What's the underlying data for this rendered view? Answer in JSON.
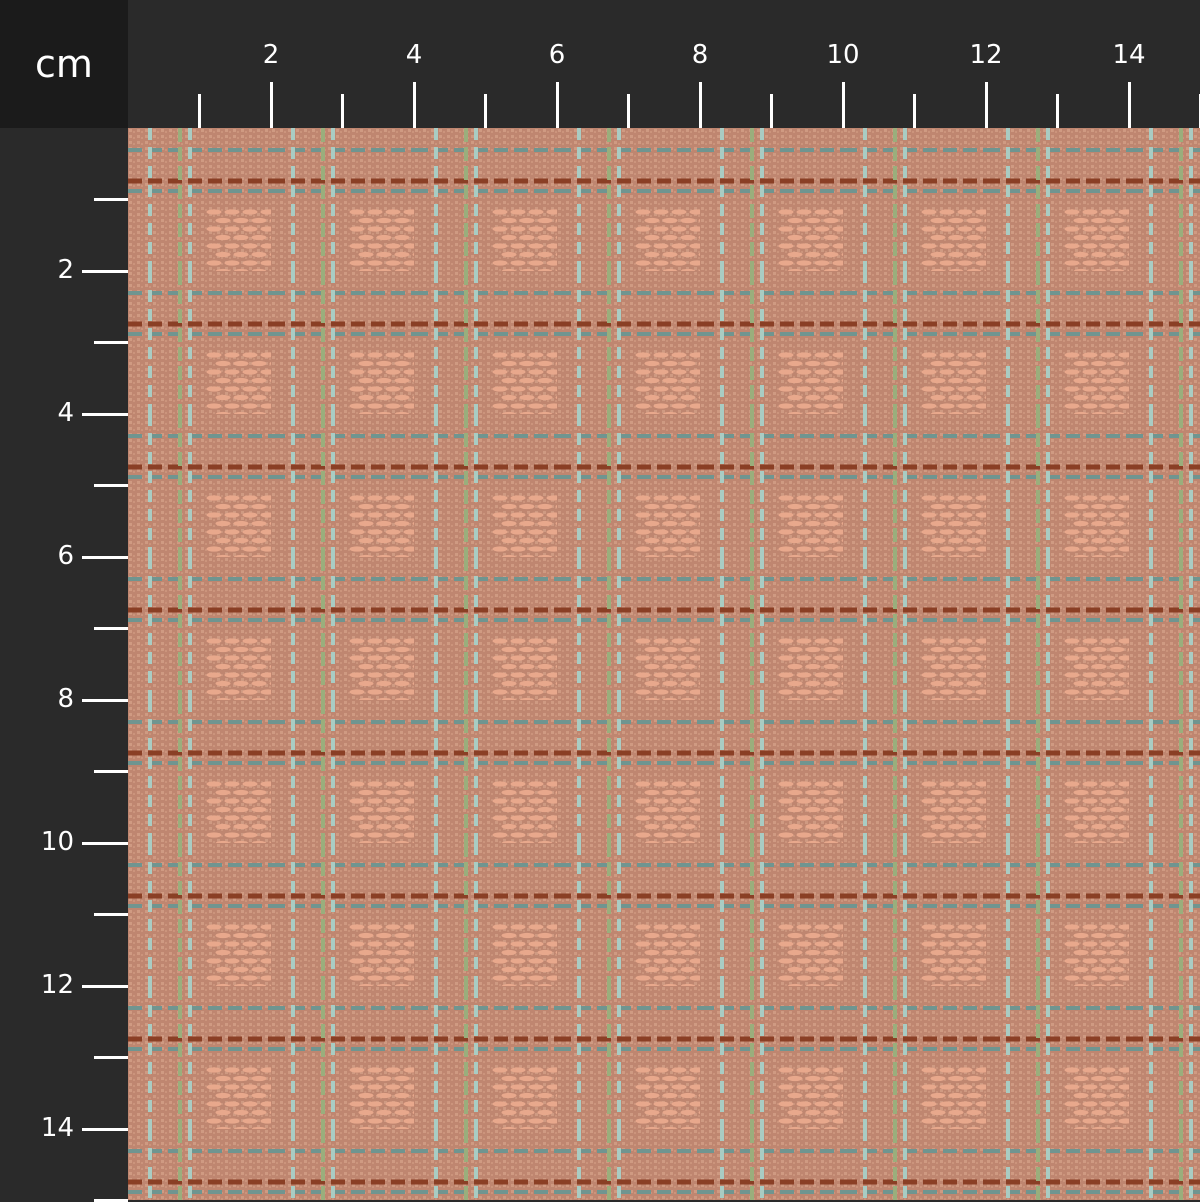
{
  "ruler": {
    "unit": "cm",
    "top_labels": [
      "2",
      "4",
      "6",
      "8",
      "10",
      "12",
      "14"
    ],
    "left_labels": [
      "2",
      "4",
      "6",
      "8",
      "10",
      "12",
      "14"
    ],
    "max_cm": 15
  },
  "fabric": {
    "pattern": "plaid-weave",
    "colors": {
      "base": "#bf8670",
      "texture": "#cf9a82",
      "block": "#e8a88c",
      "brown": "#8a3f25",
      "teal": "#6f9590",
      "light_blue": "#a9ccc3",
      "green": "#9aae7c",
      "ruler_bg": "#2a2a2a",
      "corner_bg": "#1b1b1b"
    },
    "repeat_cm": 2
  }
}
